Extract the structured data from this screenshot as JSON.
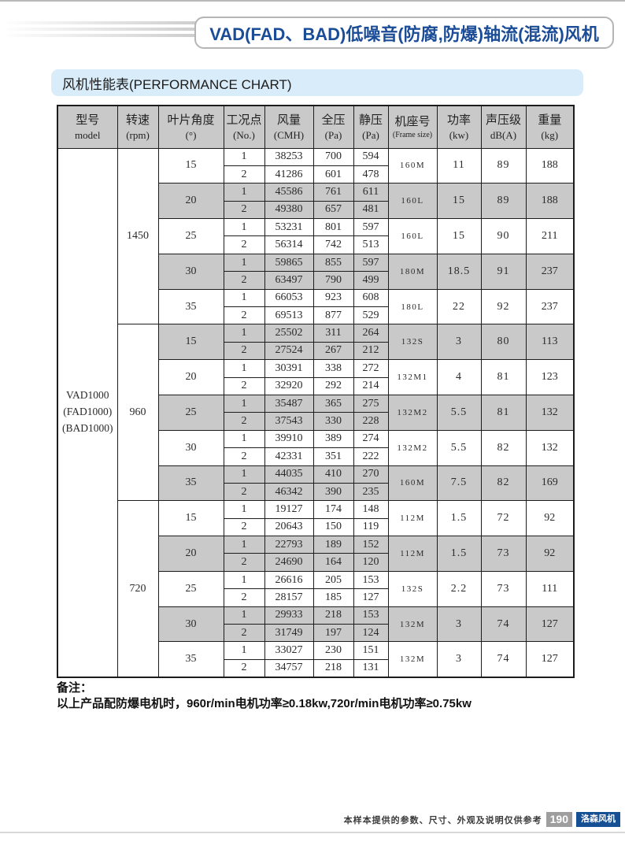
{
  "page": {
    "title": "VAD(FAD、BAD)低噪音(防腐,防爆)轴流(混流)风机",
    "section_title": "风机性能表(PERFORMANCE CHART)",
    "accent_color": "#1b4c97",
    "section_bar_bg": "#d9ecf9",
    "table_shade_color": "#c9c9c9"
  },
  "table": {
    "headers": [
      {
        "line1": "型号",
        "line2": "model"
      },
      {
        "line1": "转速",
        "line2": "(rpm)"
      },
      {
        "line1": "叶片角度",
        "line2": "(°)"
      },
      {
        "line1": "工况点",
        "line2": "(No.)"
      },
      {
        "line1": "风量",
        "line2": "(CMH)"
      },
      {
        "line1": "全压",
        "line2": "(Pa)"
      },
      {
        "line1": "静压",
        "line2": "(Pa)"
      },
      {
        "line1": "机座号",
        "line2": "(Frame size)"
      },
      {
        "line1": "功率",
        "line2": "(kw)"
      },
      {
        "line1": "声压级",
        "line2": "dB(A)"
      },
      {
        "line1": "重量",
        "line2": "(kg)"
      }
    ],
    "model_lines": [
      "VAD1000",
      "(FAD1000)",
      "(BAD1000)"
    ],
    "sections": [
      {
        "rpm": "1450",
        "groups": [
          {
            "angle": "15",
            "shaded": false,
            "points": [
              {
                "no": "1",
                "airflow": "38253",
                "total_pressure": "700",
                "static_pressure": "594"
              },
              {
                "no": "2",
                "airflow": "41286",
                "total_pressure": "601",
                "static_pressure": "478"
              }
            ],
            "frame": "160M",
            "power_kw": "11",
            "spl_db": "89",
            "weight_kg": "188"
          },
          {
            "angle": "20",
            "shaded": true,
            "points": [
              {
                "no": "1",
                "airflow": "45586",
                "total_pressure": "761",
                "static_pressure": "611"
              },
              {
                "no": "2",
                "airflow": "49380",
                "total_pressure": "657",
                "static_pressure": "481"
              }
            ],
            "frame": "160L",
            "power_kw": "15",
            "spl_db": "89",
            "weight_kg": "188"
          },
          {
            "angle": "25",
            "shaded": false,
            "points": [
              {
                "no": "1",
                "airflow": "53231",
                "total_pressure": "801",
                "static_pressure": "597"
              },
              {
                "no": "2",
                "airflow": "56314",
                "total_pressure": "742",
                "static_pressure": "513"
              }
            ],
            "frame": "160L",
            "power_kw": "15",
            "spl_db": "90",
            "weight_kg": "211"
          },
          {
            "angle": "30",
            "shaded": true,
            "points": [
              {
                "no": "1",
                "airflow": "59865",
                "total_pressure": "855",
                "static_pressure": "597"
              },
              {
                "no": "2",
                "airflow": "63497",
                "total_pressure": "790",
                "static_pressure": "499"
              }
            ],
            "frame": "180M",
            "power_kw": "18.5",
            "spl_db": "91",
            "weight_kg": "237"
          },
          {
            "angle": "35",
            "shaded": false,
            "points": [
              {
                "no": "1",
                "airflow": "66053",
                "total_pressure": "923",
                "static_pressure": "608"
              },
              {
                "no": "2",
                "airflow": "69513",
                "total_pressure": "877",
                "static_pressure": "529"
              }
            ],
            "frame": "180L",
            "power_kw": "22",
            "spl_db": "92",
            "weight_kg": "237"
          }
        ]
      },
      {
        "rpm": "960",
        "groups": [
          {
            "angle": "15",
            "shaded": true,
            "points": [
              {
                "no": "1",
                "airflow": "25502",
                "total_pressure": "311",
                "static_pressure": "264"
              },
              {
                "no": "2",
                "airflow": "27524",
                "total_pressure": "267",
                "static_pressure": "212"
              }
            ],
            "frame": "132S",
            "power_kw": "3",
            "spl_db": "80",
            "weight_kg": "113"
          },
          {
            "angle": "20",
            "shaded": false,
            "points": [
              {
                "no": "1",
                "airflow": "30391",
                "total_pressure": "338",
                "static_pressure": "272"
              },
              {
                "no": "2",
                "airflow": "32920",
                "total_pressure": "292",
                "static_pressure": "214"
              }
            ],
            "frame": "132M1",
            "power_kw": "4",
            "spl_db": "81",
            "weight_kg": "123"
          },
          {
            "angle": "25",
            "shaded": true,
            "points": [
              {
                "no": "1",
                "airflow": "35487",
                "total_pressure": "365",
                "static_pressure": "275"
              },
              {
                "no": "2",
                "airflow": "37543",
                "total_pressure": "330",
                "static_pressure": "228"
              }
            ],
            "frame": "132M2",
            "power_kw": "5.5",
            "spl_db": "81",
            "weight_kg": "132"
          },
          {
            "angle": "30",
            "shaded": false,
            "points": [
              {
                "no": "1",
                "airflow": "39910",
                "total_pressure": "389",
                "static_pressure": "274"
              },
              {
                "no": "2",
                "airflow": "42331",
                "total_pressure": "351",
                "static_pressure": "222"
              }
            ],
            "frame": "132M2",
            "power_kw": "5.5",
            "spl_db": "82",
            "weight_kg": "132"
          },
          {
            "angle": "35",
            "shaded": true,
            "points": [
              {
                "no": "1",
                "airflow": "44035",
                "total_pressure": "410",
                "static_pressure": "270"
              },
              {
                "no": "2",
                "airflow": "46342",
                "total_pressure": "390",
                "static_pressure": "235"
              }
            ],
            "frame": "160M",
            "power_kw": "7.5",
            "spl_db": "82",
            "weight_kg": "169"
          }
        ]
      },
      {
        "rpm": "720",
        "groups": [
          {
            "angle": "15",
            "shaded": false,
            "points": [
              {
                "no": "1",
                "airflow": "19127",
                "total_pressure": "174",
                "static_pressure": "148"
              },
              {
                "no": "2",
                "airflow": "20643",
                "total_pressure": "150",
                "static_pressure": "119"
              }
            ],
            "frame": "112M",
            "power_kw": "1.5",
            "spl_db": "72",
            "weight_kg": "92"
          },
          {
            "angle": "20",
            "shaded": true,
            "points": [
              {
                "no": "1",
                "airflow": "22793",
                "total_pressure": "189",
                "static_pressure": "152"
              },
              {
                "no": "2",
                "airflow": "24690",
                "total_pressure": "164",
                "static_pressure": "120"
              }
            ],
            "frame": "112M",
            "power_kw": "1.5",
            "spl_db": "73",
            "weight_kg": "92"
          },
          {
            "angle": "25",
            "shaded": false,
            "points": [
              {
                "no": "1",
                "airflow": "26616",
                "total_pressure": "205",
                "static_pressure": "153"
              },
              {
                "no": "2",
                "airflow": "28157",
                "total_pressure": "185",
                "static_pressure": "127"
              }
            ],
            "frame": "132S",
            "power_kw": "2.2",
            "spl_db": "73",
            "weight_kg": "111"
          },
          {
            "angle": "30",
            "shaded": true,
            "points": [
              {
                "no": "1",
                "airflow": "29933",
                "total_pressure": "218",
                "static_pressure": "153"
              },
              {
                "no": "2",
                "airflow": "31749",
                "total_pressure": "197",
                "static_pressure": "124"
              }
            ],
            "frame": "132M",
            "power_kw": "3",
            "spl_db": "74",
            "weight_kg": "127"
          },
          {
            "angle": "35",
            "shaded": false,
            "points": [
              {
                "no": "1",
                "airflow": "33027",
                "total_pressure": "230",
                "static_pressure": "151"
              },
              {
                "no": "2",
                "airflow": "34757",
                "total_pressure": "218",
                "static_pressure": "131"
              }
            ],
            "frame": "132M",
            "power_kw": "3",
            "spl_db": "74",
            "weight_kg": "127"
          }
        ]
      }
    ]
  },
  "notes": {
    "label": "备注：",
    "line": "以上产品配防爆电机时，960r/min电机功率≥0.18kw,720r/min电机功率≥0.75kw"
  },
  "footer": {
    "disclaimer": "本样本提供的参数、尺寸、外观及说明仅供参考",
    "page_number": "190",
    "brand": "洛森风机",
    "brand_bg": "#164f94"
  }
}
